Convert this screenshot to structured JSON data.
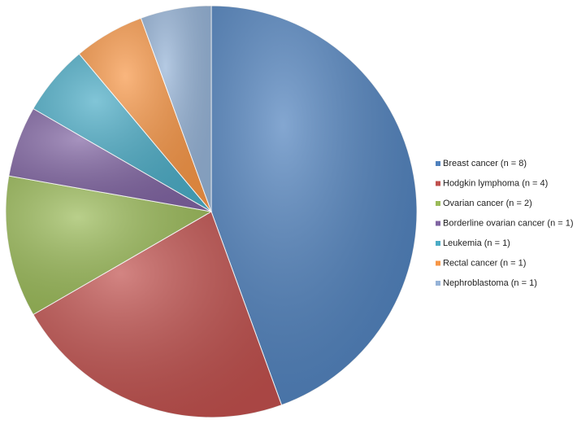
{
  "chart_data": {
    "type": "pie",
    "categories": [
      "Breast cancer (n = 8)",
      "Hodgkin lymphoma (n = 4)",
      "Ovarian cancer (n = 2)",
      "Borderline ovarian cancer (n = 1)",
      "Leukemia (n = 1)",
      "Rectal cancer (n = 1)",
      "Nephroblastoma (n = 1)"
    ],
    "values": [
      8,
      4,
      2,
      1,
      1,
      1,
      1
    ],
    "colors": [
      "#4f81bd",
      "#c0504d",
      "#9bbb59",
      "#8064a2",
      "#4bacc6",
      "#f79646",
      "#95b3d7"
    ],
    "legend": "right"
  }
}
